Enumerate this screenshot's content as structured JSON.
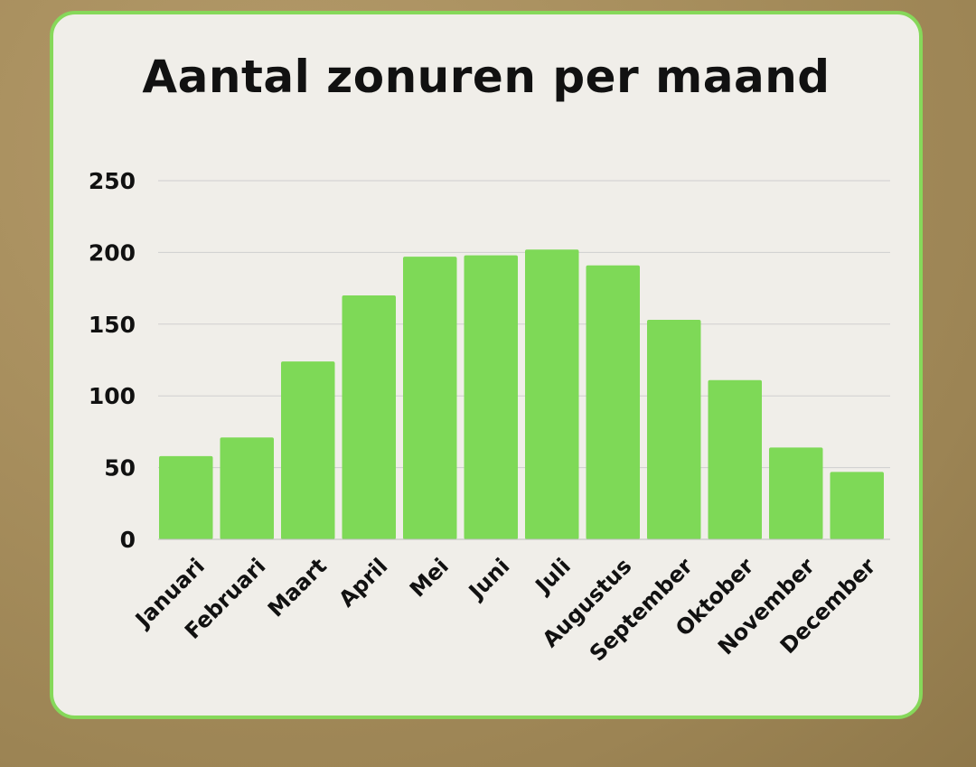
{
  "chart_data": {
    "type": "bar",
    "title": "Aantal zonuren per maand",
    "xlabel": "",
    "ylabel": "",
    "categories": [
      "Januari",
      "Februari",
      "Maart",
      "April",
      "Mei",
      "Juni",
      "Juli",
      "Augustus",
      "September",
      "Oktober",
      "November",
      "December"
    ],
    "values": [
      58,
      71,
      124,
      170,
      197,
      198,
      202,
      191,
      153,
      111,
      64,
      47
    ],
    "ylim": [
      0,
      250
    ],
    "yticks": [
      "0",
      "50",
      "100",
      "150",
      "200",
      "250"
    ],
    "grid": true,
    "legend": "none",
    "colors": {
      "bar": "#7ed957",
      "grid": "#cfcfcf",
      "border": "#86d85a"
    }
  }
}
